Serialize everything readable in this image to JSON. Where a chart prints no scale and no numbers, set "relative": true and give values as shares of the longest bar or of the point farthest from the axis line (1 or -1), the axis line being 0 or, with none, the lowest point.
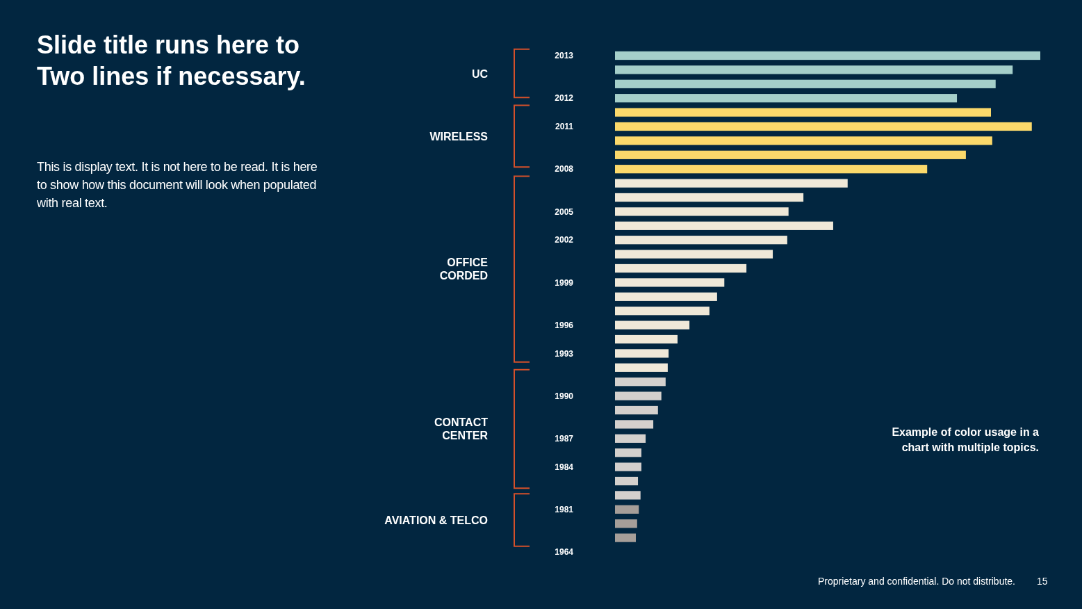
{
  "chart_data": {
    "type": "bar",
    "orientation": "horizontal",
    "relative": true,
    "title": "Slide title runs here to Two lines if necessary.",
    "subtitle": "This is display text. It is not here to be read. It is here to show how this document will look when populated with real text.",
    "categories": [
      "2013",
      null,
      null,
      "2012",
      null,
      "2011",
      null,
      null,
      "2008",
      null,
      null,
      "2005",
      null,
      "2002",
      null,
      null,
      "1999",
      null,
      null,
      "1996",
      null,
      "1993",
      null,
      null,
      "1990",
      null,
      null,
      "1987",
      null,
      "1984",
      null,
      null,
      "1981",
      null,
      null,
      "1964"
    ],
    "values": [
      1,
      0.935,
      0.895,
      0.804,
      0.884,
      0.98,
      0.887,
      0.825,
      0.734,
      0.547,
      0.443,
      0.408,
      0.513,
      0.405,
      0.371,
      0.309,
      0.257,
      0.24,
      0.222,
      0.175,
      0.147,
      0.126,
      0.124,
      0.119,
      0.109,
      0.101,
      0.09,
      0.072,
      0.062,
      0.062,
      0.054,
      0.06,
      0.056,
      0.052,
      0.049,
      0
    ],
    "colors": [
      "#a5cfca",
      "#a5cfca",
      "#a5cfca",
      "#a5cfca",
      "#fbd96b",
      "#fbd96b",
      "#fbd96b",
      "#fbd96b",
      "#fbd96b",
      "#efe8d8",
      "#efe8d8",
      "#efe8d8",
      "#efe8d8",
      "#efe8d8",
      "#efe8d8",
      "#efe8d8",
      "#efe8d8",
      "#efe8d8",
      "#efe8d8",
      "#efe8d8",
      "#efe8d8",
      "#efe8d8",
      "#efe8d8",
      "#d4d0cd",
      "#d4d0cd",
      "#d4d0cd",
      "#d4d0cd",
      "#d4d0cd",
      "#d4d0cd",
      "#d4d0cd",
      "#d4d0cd",
      "#d4d0cd",
      "#a69e99",
      "#a69e99",
      "#a69e99",
      "#a69e99"
    ],
    "annotations": [
      "UC",
      "WIRELESS",
      "OFFICE CORDED",
      "CONTACT CENTER",
      "AVIATION & TELCO",
      "Example of color usage in a chart with multiple topics.",
      "Proprietary and confidential. Do not distribute.",
      "15"
    ]
  }
}
